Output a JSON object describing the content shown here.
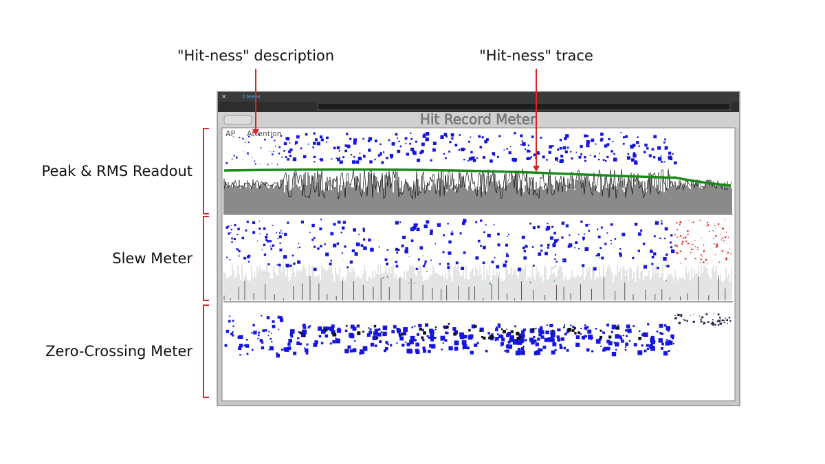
{
  "annotations": {
    "description_label": "\"Hit-ness\" description",
    "trace_label": "\"Hit-ness\" trace"
  },
  "sections": [
    {
      "label": "Peak & RMS Readout"
    },
    {
      "label": "Slew Meter"
    },
    {
      "label": "Zero-Crossing Meter"
    }
  ],
  "window": {
    "tab": "2:Meter",
    "title": "Hit Record Meter",
    "description_prefix": "AP",
    "description": "Attention"
  }
}
